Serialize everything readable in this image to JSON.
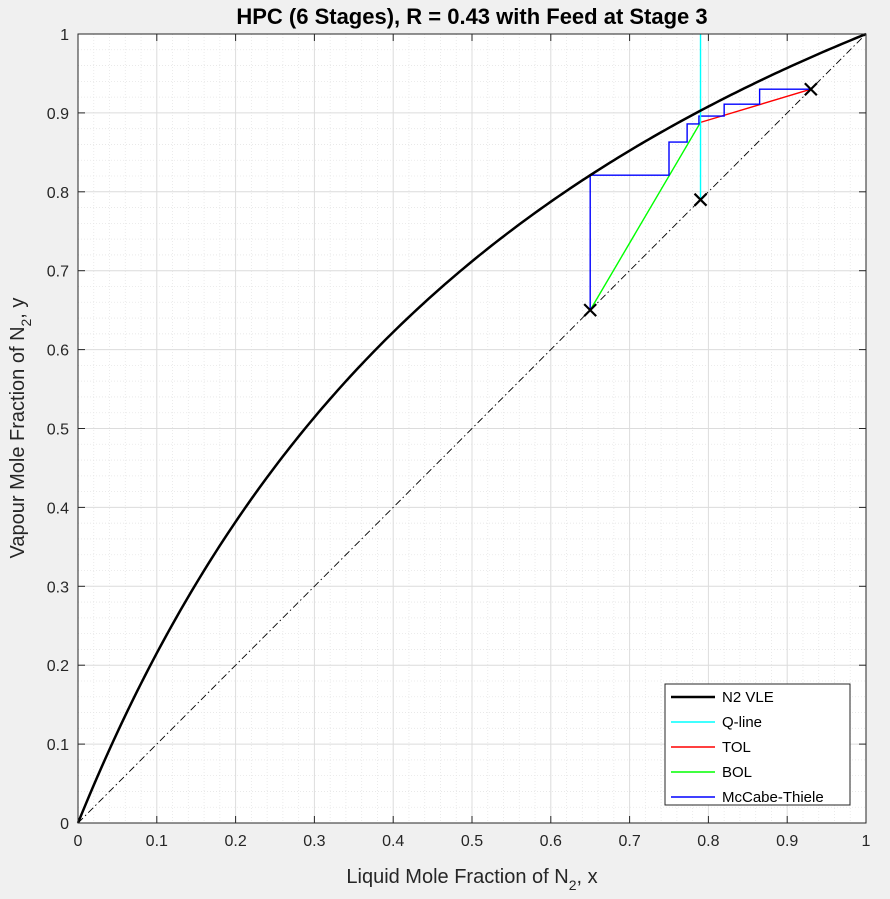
{
  "chart_data": {
    "type": "line",
    "title": "HPC (6 Stages), R = 0.43 with Feed at Stage 3",
    "xlabel_main": "Liquid Mole Fraction of N",
    "xlabel_sub": "2",
    "xlabel_tail": ", x",
    "ylabel_main": "Vapour Mole Fraction of N",
    "ylabel_sub": "2",
    "ylabel_tail": ", y",
    "xlim": [
      0,
      1
    ],
    "ylim": [
      0,
      1
    ],
    "xticks": [
      "0",
      "0.1",
      "0.2",
      "0.3",
      "0.4",
      "0.5",
      "0.6",
      "0.7",
      "0.8",
      "0.9",
      "1"
    ],
    "yticks": [
      "0",
      "0.1",
      "0.2",
      "0.3",
      "0.4",
      "0.5",
      "0.6",
      "0.7",
      "0.8",
      "0.9",
      "1"
    ],
    "grid": "major and minor",
    "legend_position": "bottom-right",
    "vle_relative_volatility": 2.47,
    "series": [
      {
        "name": "N2 VLE",
        "color": "#000000",
        "width": 2.5,
        "kind": "vle"
      },
      {
        "name": "Q-line",
        "color": "#00ffff",
        "width": 1.4,
        "points": [
          [
            0.79,
            0.79
          ],
          [
            0.79,
            1.0
          ]
        ]
      },
      {
        "name": "TOL",
        "color": "#ff0000",
        "width": 1.4,
        "points": [
          [
            0.79,
            0.888
          ],
          [
            0.93,
            0.93
          ]
        ]
      },
      {
        "name": "BOL",
        "color": "#00ff00",
        "width": 1.4,
        "points": [
          [
            0.65,
            0.65
          ],
          [
            0.79,
            0.888
          ]
        ]
      },
      {
        "name": "McCabe-Thiele",
        "color": "#0000ff",
        "width": 1.4,
        "points": [
          [
            0.93,
            0.93
          ],
          [
            0.865,
            0.93
          ],
          [
            0.865,
            0.911
          ],
          [
            0.82,
            0.911
          ],
          [
            0.82,
            0.896
          ],
          [
            0.788,
            0.896
          ],
          [
            0.788,
            0.886
          ],
          [
            0.773,
            0.886
          ],
          [
            0.773,
            0.863
          ],
          [
            0.75,
            0.863
          ],
          [
            0.75,
            0.821
          ],
          [
            0.65,
            0.821
          ],
          [
            0.65,
            0.65
          ]
        ]
      }
    ],
    "diagonal": {
      "style": "dash-dot",
      "color": "#000000",
      "points": [
        [
          0,
          0
        ],
        [
          1,
          1
        ]
      ]
    },
    "markers": [
      [
        0.65,
        0.65
      ],
      [
        0.79,
        0.79
      ],
      [
        0.93,
        0.93
      ]
    ]
  }
}
